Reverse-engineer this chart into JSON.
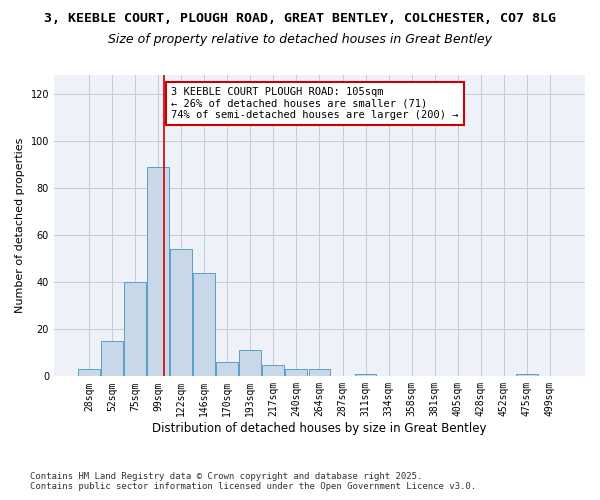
{
  "title_line1": "3, KEEBLE COURT, PLOUGH ROAD, GREAT BENTLEY, COLCHESTER, CO7 8LG",
  "title_line2": "Size of property relative to detached houses in Great Bentley",
  "xlabel": "Distribution of detached houses by size in Great Bentley",
  "ylabel": "Number of detached properties",
  "bins": [
    "28sqm",
    "52sqm",
    "75sqm",
    "99sqm",
    "122sqm",
    "146sqm",
    "170sqm",
    "193sqm",
    "217sqm",
    "240sqm",
    "264sqm",
    "287sqm",
    "311sqm",
    "334sqm",
    "358sqm",
    "381sqm",
    "405sqm",
    "428sqm",
    "452sqm",
    "475sqm",
    "499sqm"
  ],
  "values": [
    3,
    15,
    40,
    89,
    54,
    44,
    6,
    11,
    5,
    3,
    3,
    0,
    1,
    0,
    0,
    0,
    0,
    0,
    0,
    1,
    0
  ],
  "bar_color": "#c8d8e8",
  "bar_edge_color": "#5a9fc8",
  "grid_color": "#c0ccd8",
  "bg_color": "#eef2f8",
  "annotation_text": "3 KEEBLE COURT PLOUGH ROAD: 105sqm\n← 26% of detached houses are smaller (71)\n74% of semi-detached houses are larger (200) →",
  "annotation_box_color": "#ffffff",
  "annotation_box_edge": "#cc0000",
  "ylim": [
    0,
    128
  ],
  "yticks": [
    0,
    20,
    40,
    60,
    80,
    100,
    120
  ],
  "footer_line1": "Contains HM Land Registry data © Crown copyright and database right 2025.",
  "footer_line2": "Contains public sector information licensed under the Open Government Licence v3.0.",
  "title1_fontsize": 9.5,
  "title2_fontsize": 9,
  "xlabel_fontsize": 8.5,
  "ylabel_fontsize": 8,
  "tick_fontsize": 7,
  "footer_fontsize": 6.5,
  "annot_fontsize": 7.5
}
